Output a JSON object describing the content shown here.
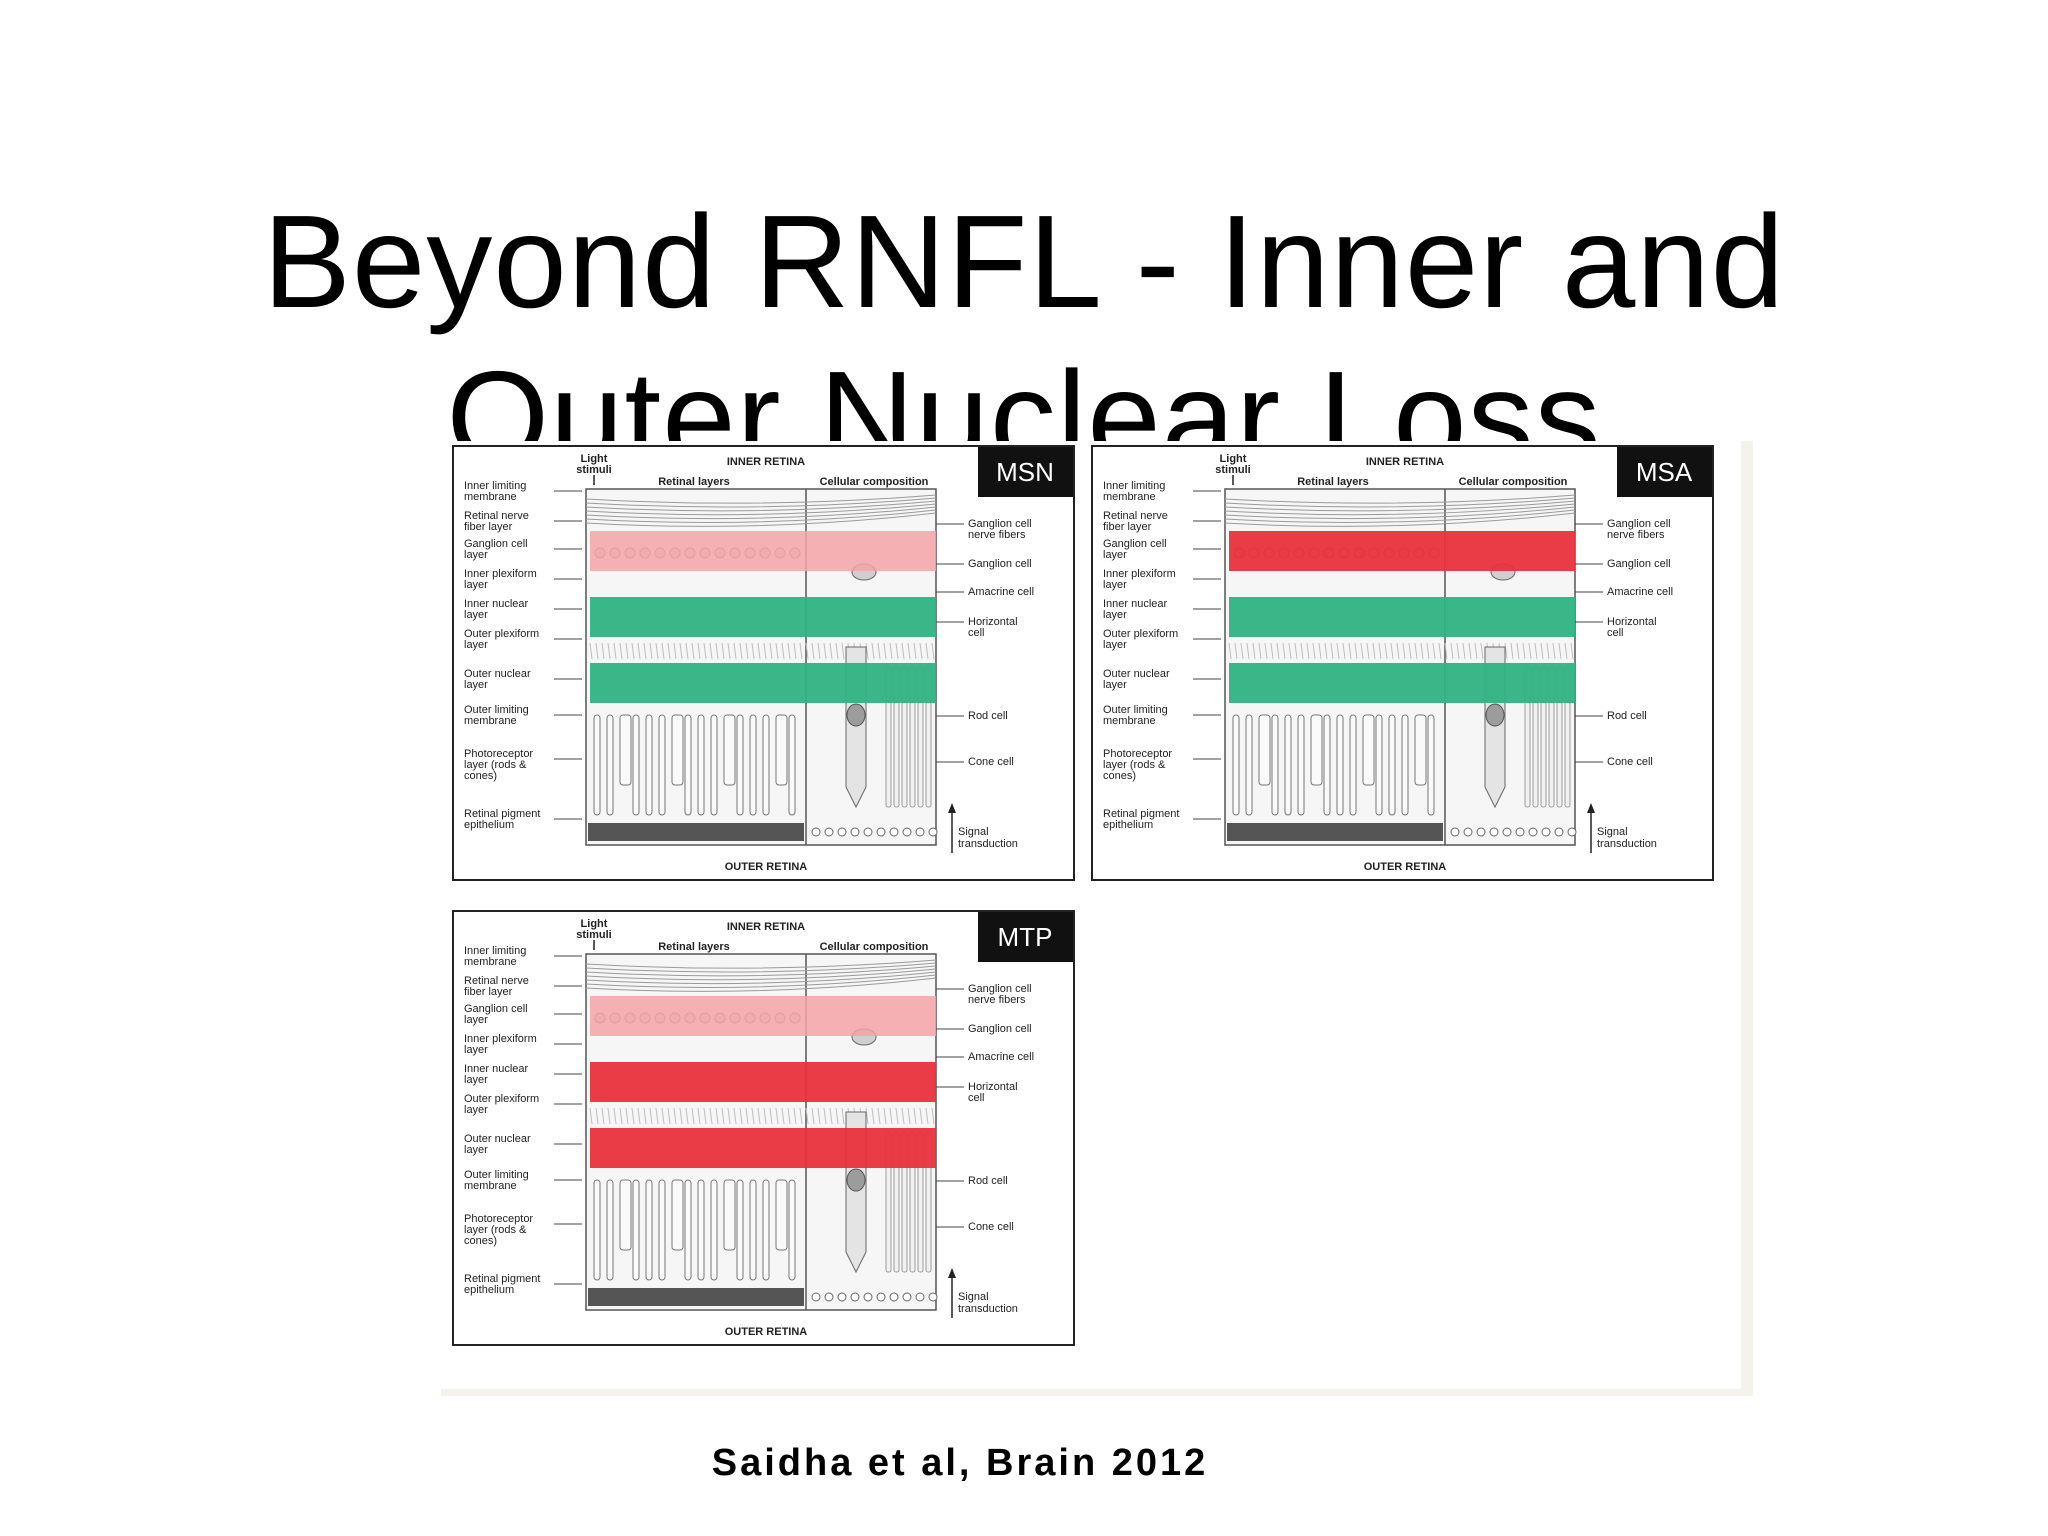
{
  "slide": {
    "title_line1": "Beyond RNFL - Inner and",
    "title_line2": "Outer Nuclear Loss",
    "citation": "Saidha et al, Brain 2012"
  },
  "colors": {
    "thinning_red": "#e8323c",
    "pale_red": "#f4a3a7",
    "preserved_green": "#2fb382",
    "badge": "#111111"
  },
  "figure": {
    "header_inner": "INNER RETINA",
    "header_outer": "OUTER RETINA",
    "light_label": "Light stimuli",
    "col_retinal": "Retinal layers",
    "col_cellular": "Cellular composition",
    "signal_label": "Signal transduction",
    "left_labels": [
      "Inner limiting membrane",
      "Retinal nerve fiber layer",
      "Ganglion cell layer",
      "Inner plexiform layer",
      "Inner nuclear layer",
      "Outer plexiform layer",
      "Outer nuclear layer",
      "Outer limiting membrane",
      "Photoreceptor layer (rods & cones)",
      "Retinal pigment epithelium"
    ],
    "right_labels": [
      "Ganglion cell nerve fibers",
      "Ganglion cell",
      "Amacrine cell",
      "Horizontal cell",
      "Rod cell",
      "Cone cell"
    ],
    "panels": [
      {
        "badge": "MSN",
        "ganglion": "pale_red",
        "inner_nuclear": "preserved_green",
        "outer_nuclear": "preserved_green"
      },
      {
        "badge": "MSA",
        "ganglion": "thinning_red",
        "inner_nuclear": "preserved_green",
        "outer_nuclear": "preserved_green"
      },
      {
        "badge": "MTP",
        "ganglion": "pale_red",
        "inner_nuclear": "thinning_red",
        "outer_nuclear": "thinning_red"
      }
    ]
  }
}
